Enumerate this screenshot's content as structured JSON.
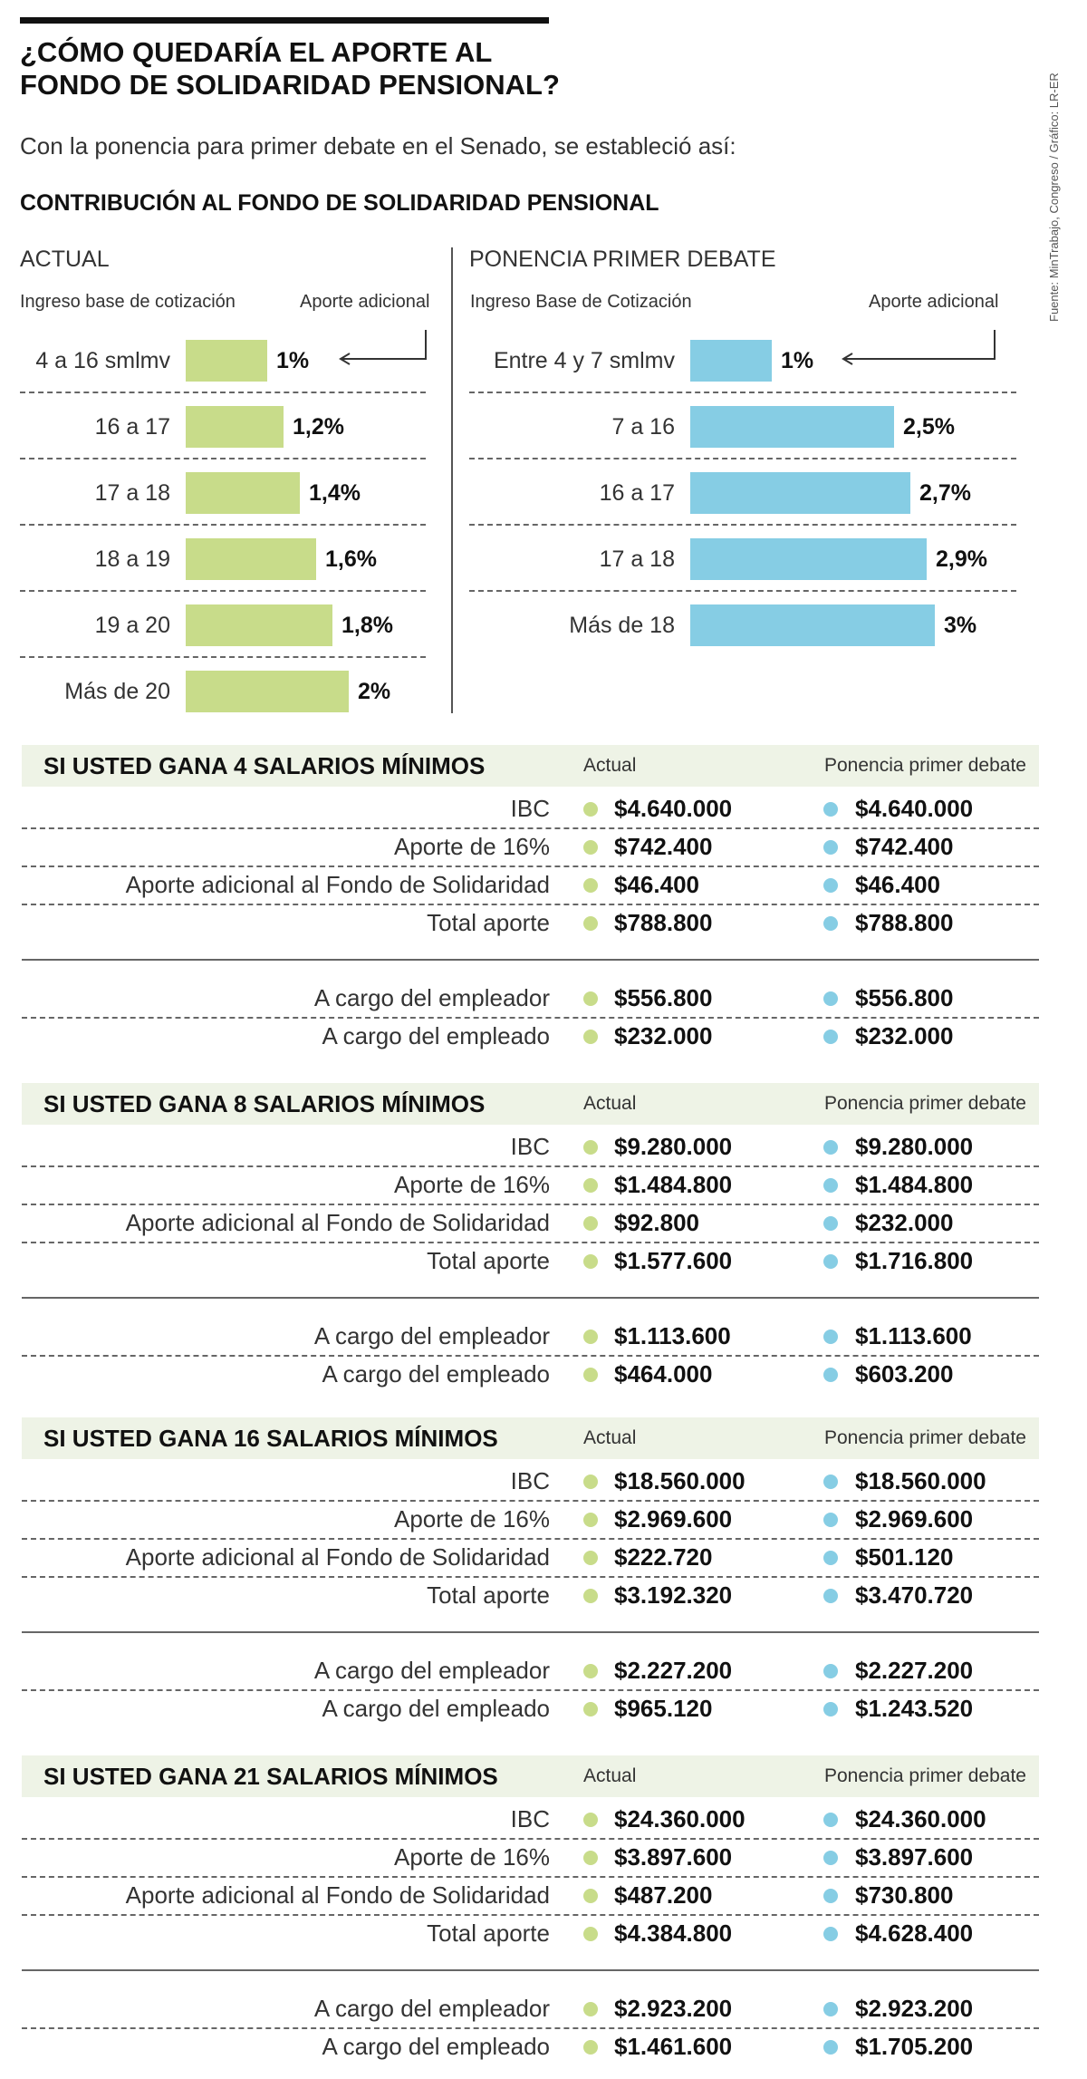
{
  "title_lines": [
    "¿CÓMO QUEDARÍA EL APORTE AL",
    "FONDO DE SOLIDARIDAD PENSIONAL?"
  ],
  "subtitle": "Con la ponencia para primer debate en el Senado, se estableció así:",
  "section_title": "CONTRIBUCIÓN AL FONDO DE SOLIDARIDAD PENSIONAL",
  "source": "Fuente: MinTrabajo, Congreso / Gráfico: LR-ER",
  "colors": {
    "green": "#c8dc8a",
    "blue": "#86cde4",
    "band": "#eef3e6"
  },
  "chart_data": [
    {
      "type": "bar",
      "orientation": "horizontal",
      "title": "ACTUAL",
      "xlabel": "Aporte adicional",
      "ylabel": "Ingreso base de cotización",
      "categories": [
        "4 a 16 smlmv",
        "16 a 17",
        "17 a 18",
        "18 a 19",
        "19 a 20",
        "Más de 20"
      ],
      "values": [
        1,
        1.2,
        1.4,
        1.6,
        1.8,
        2
      ],
      "value_labels": [
        "1%",
        "1,2%",
        "1,4%",
        "1,6%",
        "1,8%",
        "2%"
      ],
      "color": "#c8dc8a"
    },
    {
      "type": "bar",
      "orientation": "horizontal",
      "title": "PONENCIA PRIMER DEBATE",
      "xlabel": "Aporte adicional",
      "ylabel": "Ingreso Base de Cotización",
      "categories": [
        "Entre 4 y 7 smlmv",
        "7 a 16",
        "16 a 17",
        "17 a 18",
        "Más de 18"
      ],
      "values": [
        1,
        2.5,
        2.7,
        2.9,
        3
      ],
      "value_labels": [
        "1%",
        "2,5%",
        "2,7%",
        "2,9%",
        "3%"
      ],
      "color": "#86cde4"
    }
  ],
  "table_columns": {
    "actual": "Actual",
    "ponencia": "Ponencia primer debate"
  },
  "tables": [
    {
      "heading": "SI USTED GANA 4 SALARIOS MÍNIMOS",
      "rows": [
        {
          "label": "IBC",
          "actual": "$4.640.000",
          "ponencia": "$4.640.000"
        },
        {
          "label": "Aporte de 16%",
          "actual": "$742.400",
          "ponencia": "$742.400"
        },
        {
          "label": "Aporte adicional al Fondo de Solidaridad",
          "actual": "$46.400",
          "ponencia": "$46.400"
        },
        {
          "label": "Total aporte",
          "actual": "$788.800",
          "ponencia": "$788.800"
        }
      ],
      "split": [
        {
          "label": "A cargo del empleador",
          "actual": "$556.800",
          "ponencia": "$556.800"
        },
        {
          "label": "A cargo del empleado",
          "actual": "$232.000",
          "ponencia": "$232.000"
        }
      ]
    },
    {
      "heading": "SI USTED GANA 8 SALARIOS MÍNIMOS",
      "rows": [
        {
          "label": "IBC",
          "actual": "$9.280.000",
          "ponencia": "$9.280.000"
        },
        {
          "label": "Aporte de 16%",
          "actual": "$1.484.800",
          "ponencia": "$1.484.800"
        },
        {
          "label": "Aporte adicional al Fondo de Solidaridad",
          "actual": "$92.800",
          "ponencia": "$232.000"
        },
        {
          "label": "Total aporte",
          "actual": "$1.577.600",
          "ponencia": "$1.716.800"
        }
      ],
      "split": [
        {
          "label": "A cargo del empleador",
          "actual": "$1.113.600",
          "ponencia": "$1.113.600"
        },
        {
          "label": "A cargo del empleado",
          "actual": "$464.000",
          "ponencia": "$603.200"
        }
      ]
    },
    {
      "heading": "SI USTED GANA 16 SALARIOS MÍNIMOS",
      "rows": [
        {
          "label": "IBC",
          "actual": "$18.560.000",
          "ponencia": "$18.560.000"
        },
        {
          "label": "Aporte de 16%",
          "actual": "$2.969.600",
          "ponencia": "$2.969.600"
        },
        {
          "label": "Aporte adicional al Fondo de Solidaridad",
          "actual": "$222.720",
          "ponencia": "$501.120"
        },
        {
          "label": "Total aporte",
          "actual": "$3.192.320",
          "ponencia": "$3.470.720"
        }
      ],
      "split": [
        {
          "label": "A cargo del empleador",
          "actual": "$2.227.200",
          "ponencia": "$2.227.200"
        },
        {
          "label": "A cargo del empleado",
          "actual": "$965.120",
          "ponencia": "$1.243.520"
        }
      ]
    },
    {
      "heading": "SI USTED GANA 21 SALARIOS MÍNIMOS",
      "rows": [
        {
          "label": "IBC",
          "actual": "$24.360.000",
          "ponencia": "$24.360.000"
        },
        {
          "label": "Aporte de 16%",
          "actual": "$3.897.600",
          "ponencia": "$3.897.600"
        },
        {
          "label": "Aporte adicional al Fondo de Solidaridad",
          "actual": "$487.200",
          "ponencia": "$730.800"
        },
        {
          "label": "Total aporte",
          "actual": "$4.384.800",
          "ponencia": "$4.628.400"
        }
      ],
      "split": [
        {
          "label": "A cargo del empleador",
          "actual": "$2.923.200",
          "ponencia": "$2.923.200"
        },
        {
          "label": "A cargo del empleado",
          "actual": "$1.461.600",
          "ponencia": "$1.705.200"
        }
      ]
    }
  ]
}
